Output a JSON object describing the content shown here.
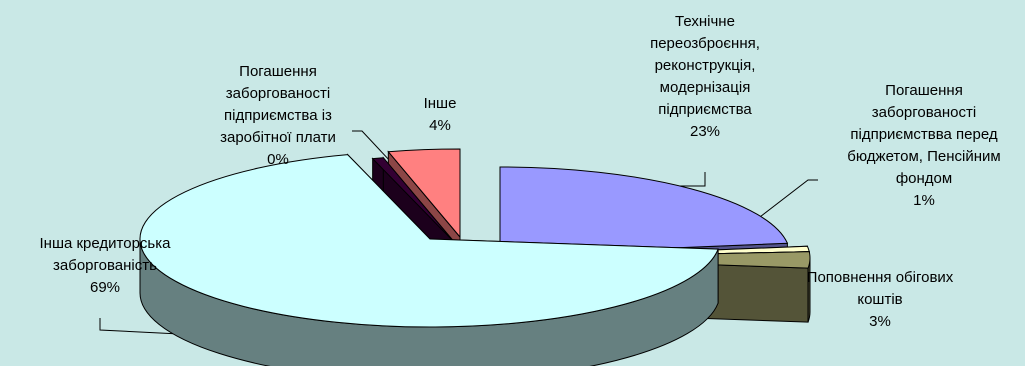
{
  "chart_data": {
    "type": "pie",
    "style": "3d-exploded",
    "title": "",
    "unit": "%",
    "slices": [
      {
        "key": "tech",
        "label_lines": [
          "Технічне",
          "переозброєння,",
          "реконструкція,",
          "модернізація",
          "підприємства"
        ],
        "value": 23,
        "value_label": "23%",
        "color": "#9999ff"
      },
      {
        "key": "budget",
        "label_lines": [
          "Погашення",
          "заборгованості",
          "підприємствва перед",
          "бюджетом, Пенсійним",
          "фондом"
        ],
        "value": 1,
        "value_label": "1%",
        "color": "#ffffcc"
      },
      {
        "key": "working",
        "label_lines": [
          "Поповнення обігових",
          "коштів"
        ],
        "value": 3,
        "value_label": "3%",
        "color": "#999966"
      },
      {
        "key": "other-creditor",
        "label_lines": [
          "Інша кредиторська",
          "заборгованість"
        ],
        "value": 69,
        "value_label": "69%",
        "color": "#ccffff"
      },
      {
        "key": "salary",
        "label_lines": [
          "Погашення",
          "заборгованості",
          "підприємства із",
          "заробітної плати"
        ],
        "value": 0,
        "value_label": "0%",
        "color": "#330033"
      },
      {
        "key": "misc",
        "label_lines": [
          "Інше"
        ],
        "value": 4,
        "value_label": "4%",
        "color": "#ff8080"
      }
    ]
  }
}
